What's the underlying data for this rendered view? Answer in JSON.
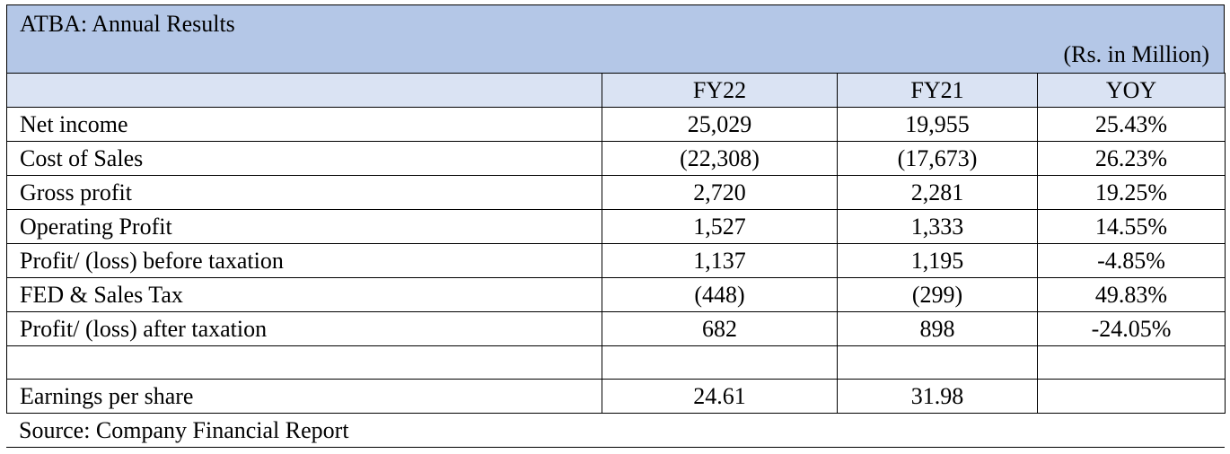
{
  "header": {
    "title": "ATBA: Annual Results",
    "unit": "(Rs. in Million)"
  },
  "table": {
    "columns": [
      "FY22",
      "FY21",
      "YOY"
    ],
    "rows": [
      [
        "Net income",
        "25,029",
        "19,955",
        "25.43%"
      ],
      [
        "Cost of Sales",
        "(22,308)",
        "(17,673)",
        "26.23%"
      ],
      [
        "Gross profit",
        "2,720",
        "2,281",
        "19.25%"
      ],
      [
        "Operating Profit",
        "1,527",
        "1,333",
        "14.55%"
      ],
      [
        "Profit/ (loss) before taxation",
        "1,137",
        "1,195",
        "-4.85%"
      ],
      [
        "FED & Sales Tax",
        "(448)",
        "(299)",
        "49.83%"
      ],
      [
        "Profit/ (loss) after taxation",
        "682",
        "898",
        "-24.05%"
      ],
      [
        "Earnings per share",
        "24.61",
        "31.98"
      ]
    ]
  },
  "footer": {
    "source": "Source: Company Financial Report"
  }
}
